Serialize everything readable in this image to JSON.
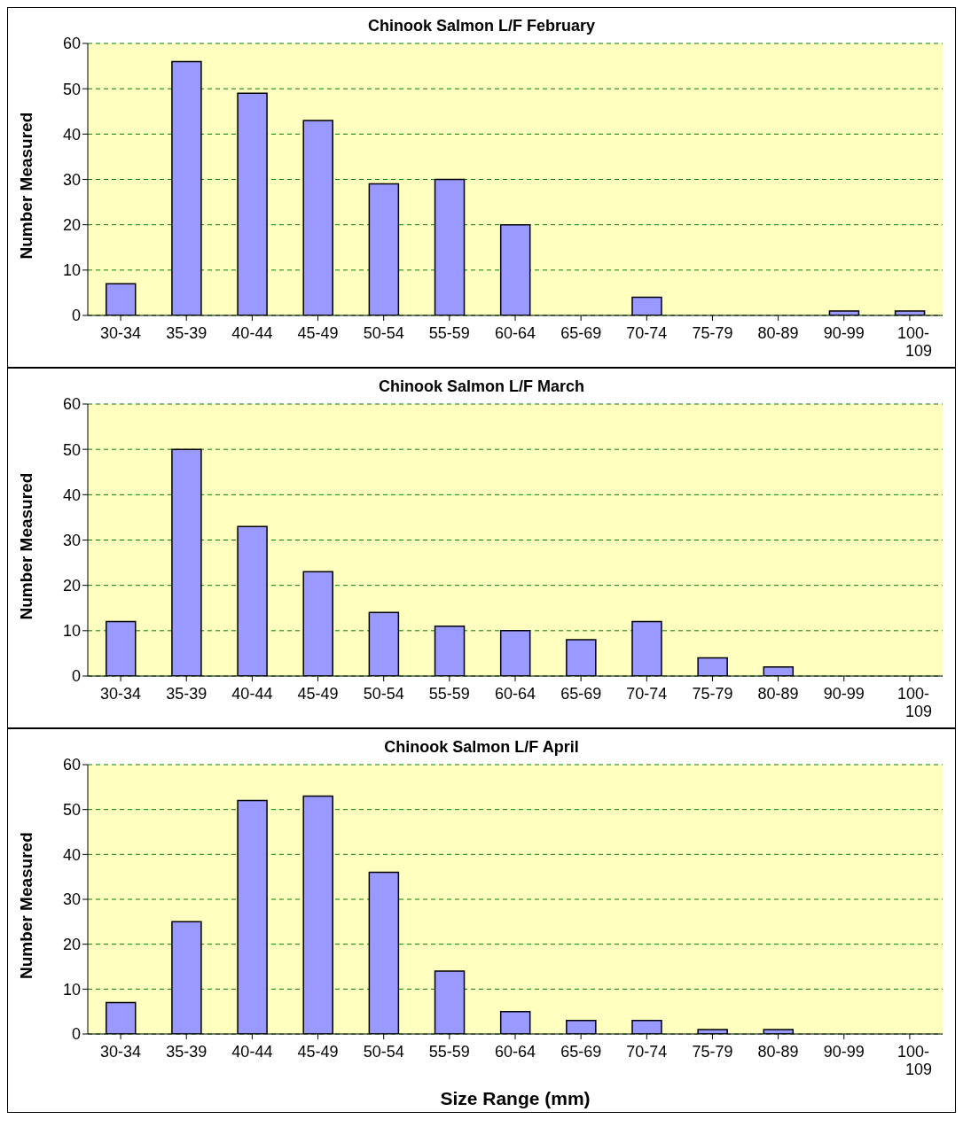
{
  "chart_data": [
    {
      "type": "bar",
      "title": "Chinook Salmon L/F February",
      "ylabel": "Number Measured",
      "categories": [
        "30-34",
        "35-39",
        "40-44",
        "45-49",
        "50-54",
        "55-59",
        "60-64",
        "65-69",
        "70-74",
        "75-79",
        "80-89",
        "90-99",
        "100-109"
      ],
      "values": [
        7,
        56,
        49,
        43,
        29,
        30,
        20,
        0,
        4,
        0,
        0,
        1,
        1
      ],
      "color": "#9999ff",
      "ylim": [
        0,
        60
      ],
      "yticks": [
        0,
        10,
        20,
        30,
        40,
        50,
        60
      ],
      "grid": "y"
    },
    {
      "type": "bar",
      "title": "Chinook Salmon L/F March",
      "ylabel": "Number Measured",
      "categories": [
        "30-34",
        "35-39",
        "40-44",
        "45-49",
        "50-54",
        "55-59",
        "60-64",
        "65-69",
        "70-74",
        "75-79",
        "80-89",
        "90-99",
        "100-109"
      ],
      "values": [
        12,
        50,
        33,
        23,
        14,
        11,
        10,
        8,
        12,
        4,
        2,
        0,
        0
      ],
      "color": "#9999ff",
      "ylim": [
        0,
        60
      ],
      "yticks": [
        0,
        10,
        20,
        30,
        40,
        50,
        60
      ],
      "grid": "y"
    },
    {
      "type": "bar",
      "title": "Chinook Salmon L/F April",
      "ylabel": "Number Measured",
      "xlabel": "Size Range (mm)",
      "categories": [
        "30-34",
        "35-39",
        "40-44",
        "45-49",
        "50-54",
        "55-59",
        "60-64",
        "65-69",
        "70-74",
        "75-79",
        "80-89",
        "90-99",
        "100-109"
      ],
      "values": [
        7,
        25,
        52,
        53,
        36,
        14,
        5,
        3,
        3,
        1,
        1,
        0,
        0
      ],
      "color": "#9999ff",
      "ylim": [
        0,
        60
      ],
      "yticks": [
        0,
        10,
        20,
        30,
        40,
        50,
        60
      ],
      "grid": "y"
    }
  ]
}
